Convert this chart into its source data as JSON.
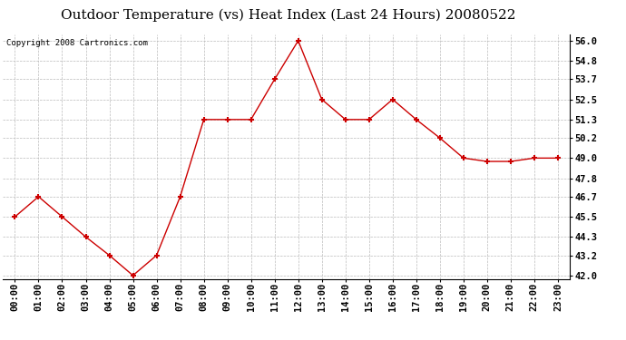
{
  "title": "Outdoor Temperature (vs) Heat Index (Last 24 Hours) 20080522",
  "copyright_text": "Copyright 2008 Cartronics.com",
  "x_labels": [
    "00:00",
    "01:00",
    "02:00",
    "03:00",
    "04:00",
    "05:00",
    "06:00",
    "07:00",
    "08:00",
    "09:00",
    "10:00",
    "11:00",
    "12:00",
    "13:00",
    "14:00",
    "15:00",
    "16:00",
    "17:00",
    "18:00",
    "19:00",
    "20:00",
    "21:00",
    "22:00",
    "23:00"
  ],
  "y_values": [
    45.5,
    46.7,
    45.5,
    44.3,
    43.2,
    42.0,
    43.2,
    46.7,
    51.3,
    51.3,
    51.3,
    53.7,
    56.0,
    52.5,
    51.3,
    51.3,
    52.5,
    51.3,
    50.2,
    49.0,
    48.8,
    48.8,
    49.0,
    49.0
  ],
  "y_ticks": [
    42.0,
    43.2,
    44.3,
    45.5,
    46.7,
    47.8,
    49.0,
    50.2,
    51.3,
    52.5,
    53.7,
    54.8,
    56.0
  ],
  "ylim": [
    41.8,
    56.4
  ],
  "line_color": "#cc0000",
  "marker": "+",
  "marker_size": 5,
  "marker_linewidth": 1.5,
  "background_color": "#ffffff",
  "grid_color": "#bbbbbb",
  "title_fontsize": 11,
  "tick_fontsize": 7.5,
  "copyright_fontsize": 6.5
}
